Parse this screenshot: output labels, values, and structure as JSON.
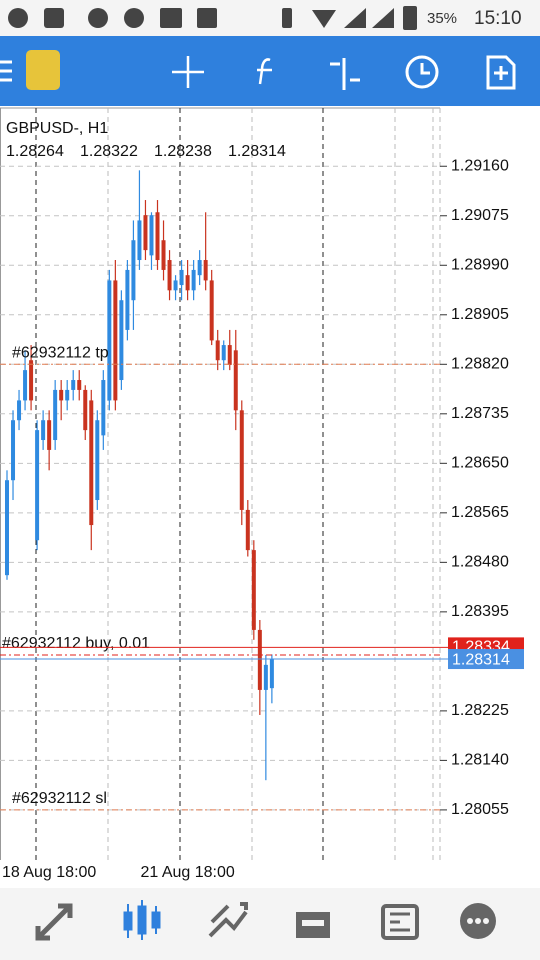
{
  "status_bar": {
    "battery": "35%",
    "time": "15:10"
  },
  "chart_data": {
    "type": "candlestick",
    "title": "GBPUSD-, H1",
    "categories": [
      "18 Aug 18:00",
      null,
      null,
      null,
      null,
      null,
      null,
      null,
      null,
      null,
      null,
      null,
      null,
      null,
      null,
      null,
      null,
      null,
      null,
      null,
      null,
      null,
      null,
      "21 Aug 18:00",
      null,
      null,
      null,
      null,
      null,
      null,
      null,
      null,
      null,
      null,
      null,
      null,
      null,
      null,
      null,
      null,
      null,
      null,
      null,
      null,
      null
    ],
    "open": [
      1.28458,
      1.28621,
      1.28724,
      1.28758,
      1.28827,
      1.28518,
      1.2869,
      1.28724,
      1.2869,
      1.28776,
      1.28758,
      1.28776,
      1.28793,
      1.28776,
      1.28758,
      1.28587,
      1.28698,
      1.28758,
      1.28964,
      1.28793,
      1.28879,
      1.2893,
      1.28999,
      1.29076,
      1.29007,
      1.29081,
      1.29033,
      1.28999,
      1.28947,
      1.28956,
      1.28973,
      1.28947,
      1.28973,
      1.28999,
      1.28964,
      1.28861,
      1.28827,
      1.28853,
      1.28844,
      1.28741,
      1.2857,
      1.28501,
      1.28364,
      1.28261,
      1.28264
    ],
    "high": [
      1.28638,
      1.28741,
      1.28776,
      1.28844,
      1.28853,
      1.28724,
      1.28741,
      1.28741,
      1.28793,
      1.28793,
      1.28793,
      1.2881,
      1.2881,
      1.28784,
      1.28776,
      1.28741,
      1.2881,
      1.28982,
      1.28999,
      1.28947,
      1.28999,
      1.29067,
      1.29153,
      1.29102,
      1.29081,
      1.29102,
      1.29067,
      1.29016,
      1.28973,
      1.28999,
      1.28999,
      1.28999,
      1.29016,
      1.29081,
      1.28982,
      1.28879,
      1.28861,
      1.28879,
      1.28879,
      1.28758,
      1.28587,
      1.28518,
      1.28381,
      1.28321,
      1.28322
    ],
    "low": [
      1.2845,
      1.28587,
      1.28707,
      1.28741,
      1.28741,
      1.28501,
      1.28673,
      1.28638,
      1.28673,
      1.28724,
      1.28741,
      1.28758,
      1.28758,
      1.2869,
      1.28501,
      1.2857,
      1.28673,
      1.28741,
      1.28741,
      1.28776,
      1.28861,
      1.28879,
      1.28982,
      1.28999,
      1.28982,
      1.28982,
      1.28964,
      1.2893,
      1.2893,
      1.2893,
      1.2893,
      1.2893,
      1.28956,
      1.28947,
      1.28853,
      1.2881,
      1.2881,
      1.2881,
      1.28707,
      1.28544,
      1.2849,
      1.28347,
      1.28218,
      1.28106,
      1.28238
    ],
    "close": [
      1.28621,
      1.28724,
      1.28758,
      1.2881,
      1.28758,
      1.28707,
      1.28724,
      1.28673,
      1.28776,
      1.28758,
      1.28776,
      1.28793,
      1.28776,
      1.28707,
      1.28544,
      1.28724,
      1.28793,
      1.28964,
      1.28758,
      1.2893,
      1.28982,
      1.29033,
      1.29067,
      1.29016,
      1.29076,
      1.28999,
      1.28982,
      1.28947,
      1.28964,
      1.28982,
      1.28947,
      1.28982,
      1.28999,
      1.28964,
      1.28861,
      1.28827,
      1.28853,
      1.28819,
      1.28741,
      1.2857,
      1.28501,
      1.28364,
      1.28261,
      1.28304,
      1.28314
    ],
    "up_color": "#2f8ae0",
    "down_color": "#c9331f",
    "ylim": [
      1.27969,
      1.2926
    ],
    "yticks": [
      {
        "value": 1.2916,
        "label": "1.29160"
      },
      1.29075,
      {
        "value": 1.2899,
        "label": "1.28990"
      },
      1.28905,
      {
        "value": 1.2882,
        "label": "1.28820"
      },
      1.28735,
      {
        "value": 1.2865,
        "label": "1.28650"
      },
      1.28565,
      {
        "value": 1.2848,
        "label": "1.28480"
      },
      1.28395,
      1.28225,
      {
        "value": 1.2814,
        "label": "1.28140"
      },
      1.28055
    ],
    "grid": true,
    "ask": 1.28334,
    "ask_color": "#e0221b",
    "bid_color": "#4a90e2",
    "levels": [
      {
        "label": "#62932112 tp",
        "value": 1.2882,
        "color": "#e07b50"
      },
      {
        "label": "#62932112 buy, 0.01",
        "value": 1.28321,
        "color": "#e0221b"
      },
      {
        "label": "#62932112 sl",
        "value": 1.28055,
        "color": "#e07b50"
      }
    ]
  }
}
